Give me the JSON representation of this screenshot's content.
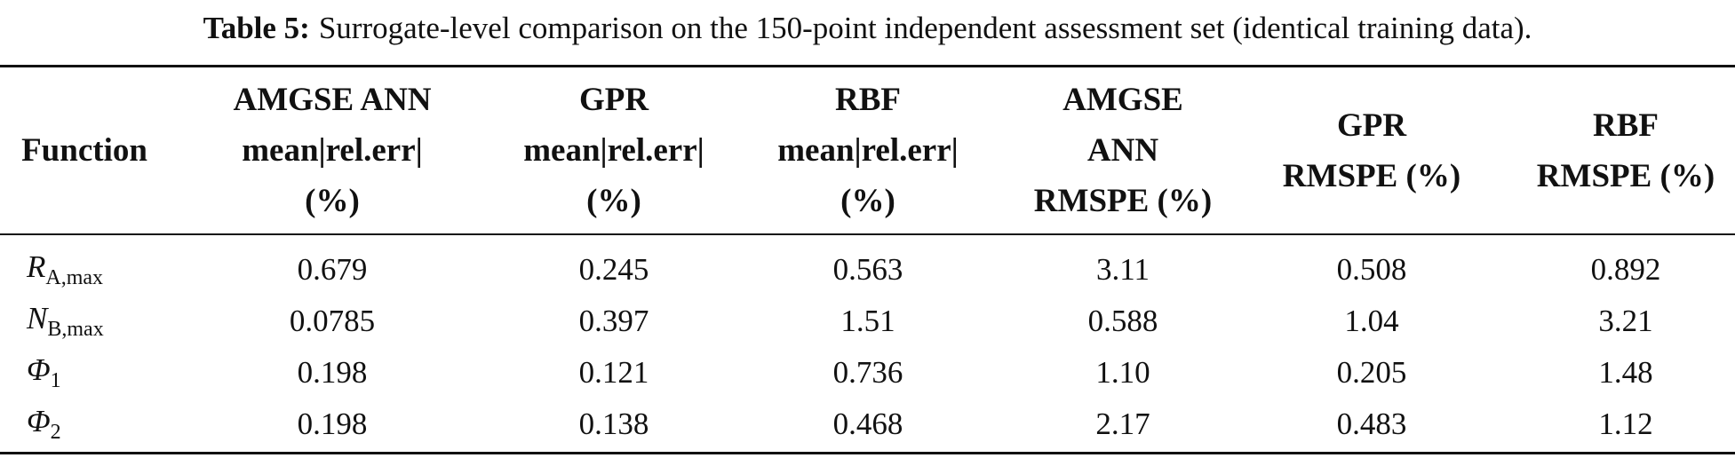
{
  "caption": {
    "label": "Table 5:",
    "text": "Surrogate-level comparison on the 150-point independent assessment set (identical training data)."
  },
  "table": {
    "header": [
      [
        "Function"
      ],
      [
        "AMGSE ANN",
        "mean|rel.err|",
        "(%)"
      ],
      [
        "GPR",
        "mean|rel.err|",
        "(%)"
      ],
      [
        "RBF",
        "mean|rel.err|",
        "(%)"
      ],
      [
        "AMGSE",
        "ANN",
        "RMSPE (%)"
      ],
      [
        "GPR",
        "RMSPE (%)"
      ],
      [
        "RBF",
        "RMSPE (%)"
      ]
    ],
    "rows": [
      [
        {
          "main": "R",
          "sub": "A,max"
        },
        "0.679",
        "0.245",
        "0.563",
        "3.11",
        "0.508",
        "0.892"
      ],
      [
        {
          "main": "N",
          "sub": "B,max"
        },
        "0.0785",
        "0.397",
        "1.51",
        "0.588",
        "1.04",
        "3.21"
      ],
      [
        {
          "main": "Φ",
          "sub": "1"
        },
        "0.198",
        "0.121",
        "0.736",
        "1.10",
        "0.205",
        "1.48"
      ],
      [
        {
          "main": "Φ",
          "sub": "2"
        },
        "0.198",
        "0.138",
        "0.468",
        "2.17",
        "0.483",
        "1.12"
      ]
    ]
  }
}
